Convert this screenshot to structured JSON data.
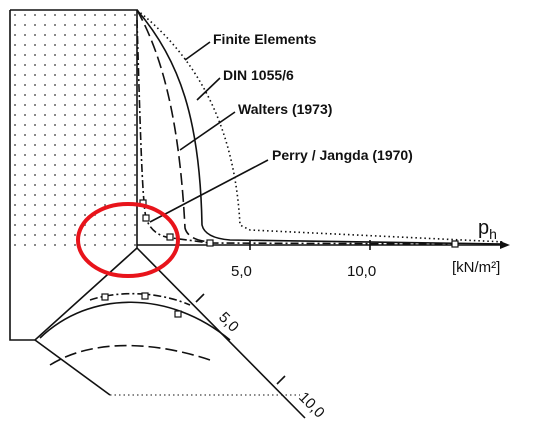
{
  "curves": [
    {
      "label": "Finite Elements"
    },
    {
      "label": "DIN 1055/6"
    },
    {
      "label": "Walters (1973)"
    },
    {
      "label": "Perry / Jangda (1970)"
    }
  ],
  "horizontal_axis": {
    "symbol": "p",
    "subscript": "h",
    "unit": "[kN/m²]",
    "ticks": [
      "5,0",
      "10,0"
    ]
  },
  "inclined_axis": {
    "ticks": [
      "5,0",
      "10,0"
    ]
  }
}
